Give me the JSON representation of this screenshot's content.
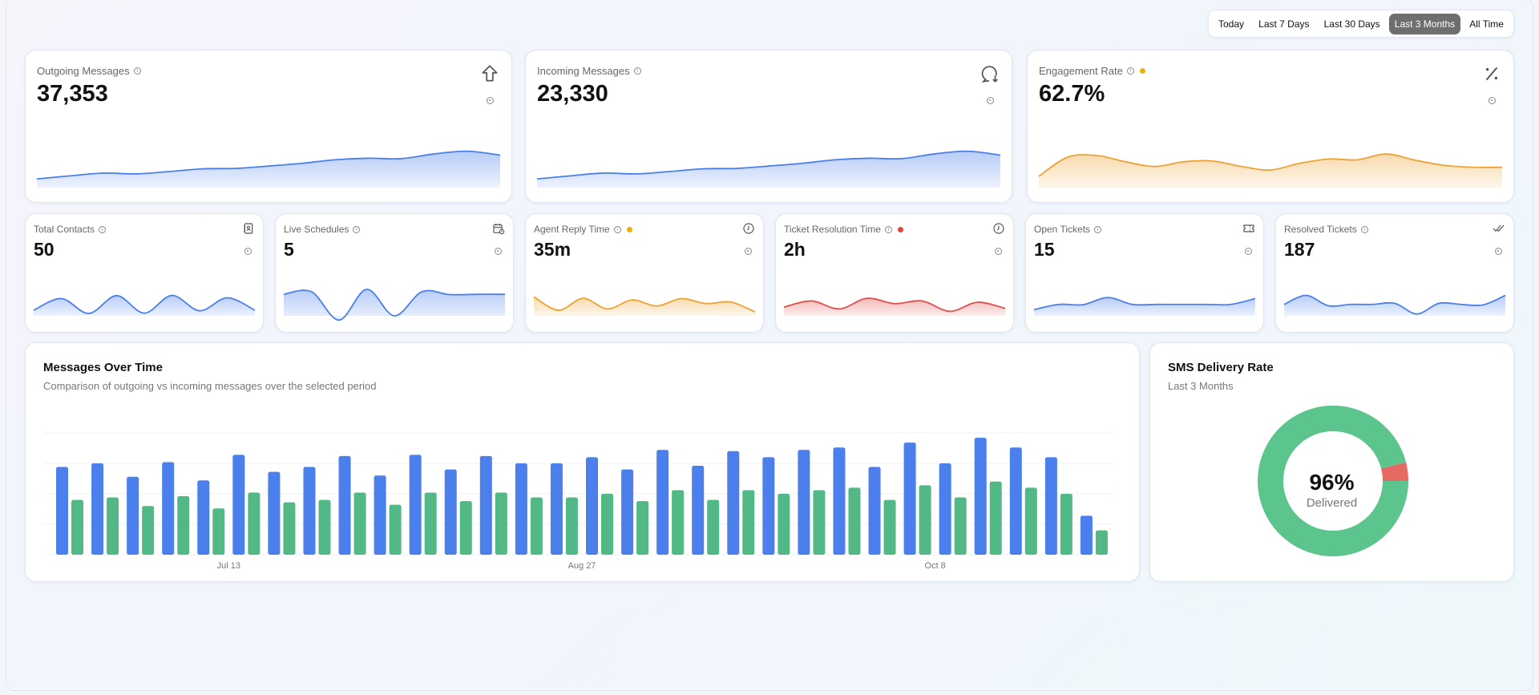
{
  "time_range": {
    "options": [
      "Today",
      "Last 7 Days",
      "Last 30 Days",
      "Last 3 Months",
      "All Time"
    ],
    "selected_index": 3
  },
  "colors": {
    "blue": "#4a7fec",
    "green": "#52b886",
    "orange": "#eea233",
    "red": "#e0514c",
    "yellow_dot": "#e8b20c",
    "red_dot": "#e5433b",
    "donut_green": "#5bc58d",
    "donut_red": "#e46a62"
  },
  "kpi_cards": [
    {
      "title": "Outgoing Messages",
      "value": "37,353",
      "icon": "arrow-up-icon",
      "color": "blue",
      "trend": [
        22,
        30,
        37,
        35,
        41,
        48,
        49,
        55,
        62,
        71,
        75,
        74,
        86,
        93,
        83
      ]
    },
    {
      "title": "Incoming Messages",
      "value": "23,330",
      "icon": "message-download-icon",
      "color": "blue",
      "trend": [
        22,
        30,
        37,
        35,
        41,
        48,
        49,
        55,
        62,
        71,
        75,
        74,
        86,
        93,
        83
      ]
    },
    {
      "title": "Engagement Rate",
      "value": "62.7%",
      "icon": "percent-icon",
      "color": "orange",
      "status_dot": "yellow_dot",
      "trend": [
        29,
        78,
        82,
        66,
        54,
        66,
        68,
        54,
        45,
        62,
        73,
        71,
        86,
        70,
        57,
        52,
        52
      ]
    }
  ],
  "metric_cards": [
    {
      "title": "Total Contacts",
      "value": "50",
      "icon": "contacts-book-icon",
      "color": "blue",
      "trend": [
        21,
        65,
        9,
        76,
        10,
        77,
        19,
        68,
        21
      ]
    },
    {
      "title": "Live Schedules",
      "value": "5",
      "icon": "calendar-clock-icon",
      "color": "blue",
      "trend": [
        81,
        91,
        -16,
        100,
        0,
        91,
        80,
        81,
        81
      ]
    },
    {
      "title": "Agent Reply Time",
      "value": "35m",
      "icon": "clock-icon",
      "color": "orange",
      "status_dot": "yellow_dot",
      "trend": [
        72,
        21,
        66,
        26,
        60,
        37,
        65,
        46,
        52,
        15
      ]
    },
    {
      "title": "Ticket Resolution Time",
      "value": "2h",
      "icon": "clock-icon",
      "color": "red",
      "status_dot": "red_dot",
      "trend": [
        33,
        56,
        26,
        66,
        46,
        56,
        17,
        51,
        28
      ]
    },
    {
      "title": "Open Tickets",
      "value": "15",
      "icon": "ticket-icon",
      "color": "blue",
      "trend": [
        23,
        43,
        42,
        69,
        43,
        43,
        43,
        43,
        43,
        65
      ]
    },
    {
      "title": "Resolved Tickets",
      "value": "187",
      "icon": "double-check-icon",
      "color": "blue",
      "trend": [
        43,
        77,
        38,
        43,
        43,
        47,
        7,
        47,
        43,
        41,
        77
      ]
    }
  ],
  "messages_chart": {
    "title": "Messages Over Time",
    "subtitle": "Comparison of outgoing vs incoming messages over the selected period"
  },
  "sms_chart": {
    "title": "SMS Delivery Rate",
    "subtitle": "Last 3 Months",
    "center_value": "96%",
    "center_label": "Delivered"
  },
  "chart_data": [
    {
      "type": "bar",
      "title": "Messages Over Time",
      "grid": true,
      "ylim": [
        0,
        100
      ],
      "x_ticks": [
        {
          "label": "Jul 13",
          "index": 5
        },
        {
          "label": "Aug 27",
          "index": 15
        },
        {
          "label": "Oct 8",
          "index": 25
        }
      ],
      "series": [
        {
          "color": "#4a7fec",
          "values": [
            72,
            75,
            64,
            76,
            61,
            82,
            68,
            72,
            81,
            65,
            82,
            70,
            81,
            75,
            75,
            80,
            70,
            86,
            73,
            85,
            80,
            86,
            88,
            72,
            92,
            75,
            96,
            88,
            80,
            32
          ]
        },
        {
          "color": "#52b886",
          "values": [
            45,
            47,
            40,
            48,
            38,
            51,
            43,
            45,
            51,
            41,
            51,
            44,
            51,
            47,
            47,
            50,
            44,
            53,
            45,
            53,
            50,
            53,
            55,
            45,
            57,
            47,
            60,
            55,
            50,
            20
          ]
        }
      ]
    },
    {
      "type": "pie",
      "title": "SMS Delivery Rate",
      "subtitle": "Last 3 Months",
      "slices": [
        {
          "label": "Delivered",
          "value": 96,
          "color": "#5bc58d"
        },
        {
          "value": 4,
          "color": "#e46a62"
        }
      ]
    }
  ]
}
